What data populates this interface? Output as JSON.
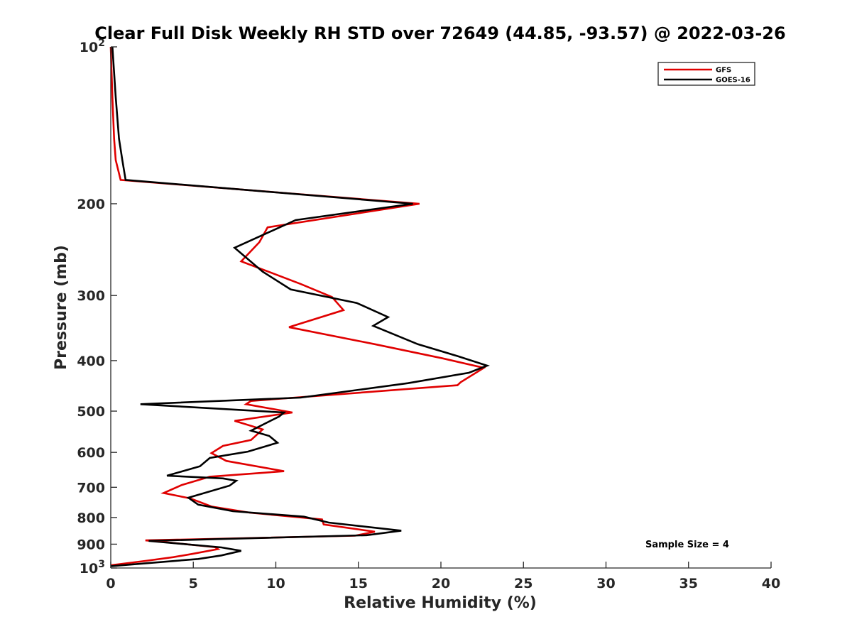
{
  "chart_data": {
    "type": "line",
    "title": "Clear Full Disk Weekly RH STD over 72649 (44.85, -93.57) @ 2022-03-26",
    "xlabel": "Relative Humidity (%)",
    "ylabel": "Pressure (mb)",
    "xlim": [
      0,
      40
    ],
    "ylim": [
      100,
      1000
    ],
    "yscale": "log",
    "y_reversed": true,
    "x_ticks": [
      "0",
      "5",
      "10",
      "15",
      "20",
      "25",
      "30",
      "35",
      "40"
    ],
    "y_ticks": [
      {
        "value": 100,
        "label": "10",
        "sup": "2"
      },
      {
        "value": 200,
        "label": "200",
        "sup": ""
      },
      {
        "value": 300,
        "label": "300",
        "sup": ""
      },
      {
        "value": 400,
        "label": "400",
        "sup": ""
      },
      {
        "value": 500,
        "label": "500",
        "sup": ""
      },
      {
        "value": 600,
        "label": "600",
        "sup": ""
      },
      {
        "value": 700,
        "label": "700",
        "sup": ""
      },
      {
        "value": 800,
        "label": "800",
        "sup": ""
      },
      {
        "value": 900,
        "label": "900",
        "sup": ""
      },
      {
        "value": 1000,
        "label": "10",
        "sup": "3"
      }
    ],
    "grid": false,
    "legend_position": "top-right",
    "annotation": "Sample Size = 4",
    "series": [
      {
        "name": "GFS",
        "color": "#e00000",
        "points": [
          [
            0.0,
            100
          ],
          [
            0.1,
            125
          ],
          [
            0.2,
            150
          ],
          [
            0.3,
            165
          ],
          [
            0.6,
            180
          ],
          [
            18.7,
            200
          ],
          [
            9.5,
            222
          ],
          [
            9.0,
            237
          ],
          [
            7.9,
            258
          ],
          [
            11.5,
            285
          ],
          [
            13.4,
            302
          ],
          [
            14.1,
            320
          ],
          [
            10.8,
            345
          ],
          [
            16.0,
            372
          ],
          [
            20.1,
            396
          ],
          [
            22.6,
            413
          ],
          [
            21.2,
            440
          ],
          [
            21.0,
            446
          ],
          [
            8.5,
            478
          ],
          [
            8.2,
            485
          ],
          [
            11.0,
            503
          ],
          [
            7.5,
            522
          ],
          [
            9.2,
            542
          ],
          [
            8.5,
            568
          ],
          [
            6.8,
            583
          ],
          [
            6.1,
            602
          ],
          [
            7.0,
            623
          ],
          [
            10.5,
            652
          ],
          [
            6.0,
            668
          ],
          [
            4.3,
            693
          ],
          [
            3.2,
            718
          ],
          [
            4.8,
            735
          ],
          [
            6.1,
            762
          ],
          [
            8.4,
            783
          ],
          [
            12.8,
            807
          ],
          [
            12.9,
            825
          ],
          [
            16.0,
            852
          ],
          [
            14.8,
            867
          ],
          [
            2.1,
            885
          ],
          [
            3.0,
            890
          ],
          [
            6.3,
            912
          ],
          [
            6.5,
            920
          ],
          [
            4.9,
            940
          ],
          [
            3.8,
            953
          ],
          [
            2.1,
            969
          ],
          [
            0.0,
            988
          ]
        ]
      },
      {
        "name": "GOES-16",
        "color": "#000000",
        "points": [
          [
            0.1,
            100
          ],
          [
            0.3,
            125
          ],
          [
            0.5,
            150
          ],
          [
            0.7,
            165
          ],
          [
            0.9,
            180
          ],
          [
            18.3,
            200
          ],
          [
            11.2,
            215
          ],
          [
            7.5,
            243
          ],
          [
            9.2,
            270
          ],
          [
            10.9,
            292
          ],
          [
            14.9,
            310
          ],
          [
            16.8,
            330
          ],
          [
            15.9,
            343
          ],
          [
            18.6,
            372
          ],
          [
            21.0,
            392
          ],
          [
            22.8,
            409
          ],
          [
            21.7,
            422
          ],
          [
            18.0,
            442
          ],
          [
            11.5,
            471
          ],
          [
            1.8,
            485
          ],
          [
            10.5,
            503
          ],
          [
            10.2,
            512
          ],
          [
            8.5,
            545
          ],
          [
            9.6,
            558
          ],
          [
            10.1,
            575
          ],
          [
            8.3,
            598
          ],
          [
            6.0,
            615
          ],
          [
            5.4,
            638
          ],
          [
            3.4,
            665
          ],
          [
            6.8,
            673
          ],
          [
            7.6,
            680
          ],
          [
            7.2,
            695
          ],
          [
            4.7,
            733
          ],
          [
            5.3,
            756
          ],
          [
            7.4,
            778
          ],
          [
            11.7,
            797
          ],
          [
            13.2,
            818
          ],
          [
            17.6,
            848
          ],
          [
            15.5,
            865
          ],
          [
            2.3,
            887
          ],
          [
            6.7,
            913
          ],
          [
            7.9,
            927
          ],
          [
            6.7,
            946
          ],
          [
            5.3,
            961
          ],
          [
            0.0,
            992
          ]
        ]
      }
    ]
  }
}
